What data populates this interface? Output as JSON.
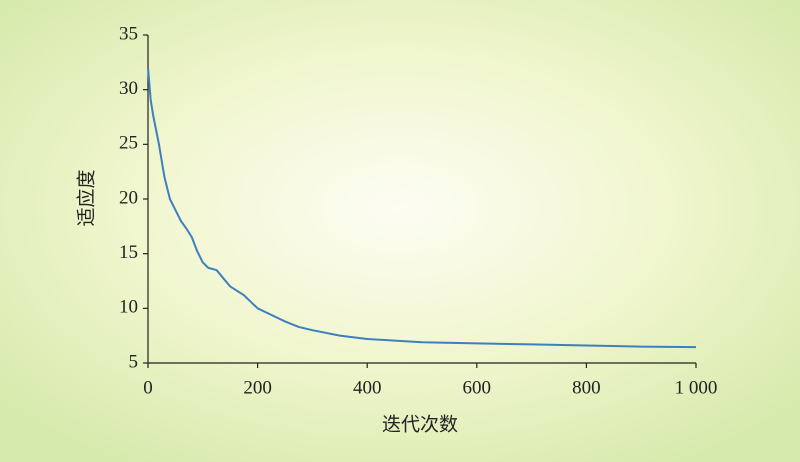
{
  "chart_data": {
    "type": "line",
    "xlabel": "迭代次数",
    "ylabel": "适应度",
    "x": [
      0,
      5,
      10,
      20,
      30,
      40,
      50,
      60,
      70,
      80,
      90,
      100,
      110,
      125,
      150,
      175,
      200,
      225,
      250,
      275,
      300,
      350,
      400,
      450,
      500,
      600,
      700,
      800,
      900,
      1000
    ],
    "series": [
      {
        "name": "fitness",
        "color": "#3d7fbf",
        "values": [
          32,
          29,
          27.5,
          25,
          22,
          20,
          19,
          18,
          17.3,
          16.5,
          15.2,
          14.2,
          13.7,
          13.5,
          12,
          11.2,
          10,
          9.4,
          8.8,
          8.3,
          8,
          7.5,
          7.2,
          7.05,
          6.9,
          6.8,
          6.7,
          6.6,
          6.5,
          6.45
        ]
      }
    ],
    "xlim": [
      0,
      1000
    ],
    "xticks": [
      0,
      200,
      400,
      600,
      800,
      {
        "value": 1000,
        "label": "1 000"
      }
    ],
    "ylim": [
      5,
      35
    ],
    "yticks": [
      5,
      10,
      15,
      20,
      25,
      30,
      35
    ],
    "grid": false
  }
}
